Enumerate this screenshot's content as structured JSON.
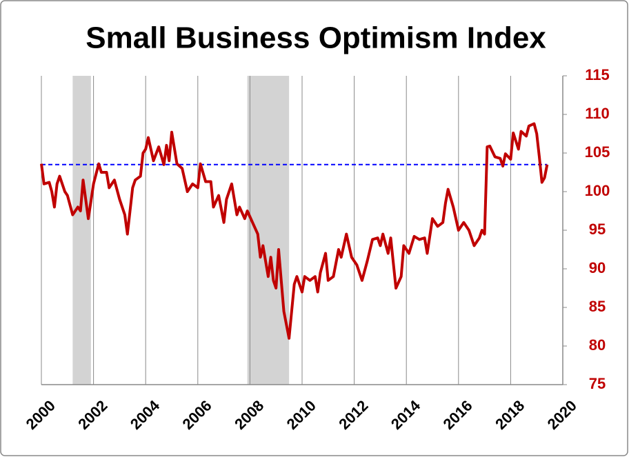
{
  "chart_data": {
    "type": "line",
    "title": "Small Business Optimism Index",
    "xlim": [
      2000,
      2020
    ],
    "xticks": [
      2000,
      2002,
      2004,
      2006,
      2008,
      2010,
      2012,
      2014,
      2016,
      2018,
      2020
    ],
    "ylim": [
      75,
      115
    ],
    "yticks": [
      75,
      80,
      85,
      90,
      95,
      100,
      105,
      110,
      115
    ],
    "grid": true,
    "y_axis_side": "right",
    "tick_label_color": "#c00000",
    "shaded_periods": [
      [
        2001.2,
        2001.9
      ],
      [
        2007.9,
        2009.5
      ]
    ],
    "shade_color": "#d3d3d3",
    "reference_line": {
      "value": 103.5,
      "color": "#0000ff"
    },
    "x": [
      2000.0,
      2000.1,
      2000.3,
      2000.4,
      2000.5,
      2000.6,
      2000.7,
      2000.9,
      2001.0,
      2001.2,
      2001.4,
      2001.5,
      2001.6,
      2001.8,
      2002.0,
      2002.2,
      2002.3,
      2002.5,
      2002.6,
      2002.8,
      2003.0,
      2003.2,
      2003.3,
      2003.5,
      2003.6,
      2003.8,
      2003.9,
      2004.0,
      2004.1,
      2004.3,
      2004.5,
      2004.7,
      2004.8,
      2004.9,
      2005.0,
      2005.2,
      2005.4,
      2005.6,
      2005.8,
      2006.0,
      2006.1,
      2006.3,
      2006.5,
      2006.6,
      2006.8,
      2007.0,
      2007.1,
      2007.3,
      2007.5,
      2007.6,
      2007.8,
      2007.9,
      2008.1,
      2008.3,
      2008.4,
      2008.5,
      2008.7,
      2008.8,
      2008.9,
      2009.0,
      2009.1,
      2009.3,
      2009.5,
      2009.7,
      2009.8,
      2010.0,
      2010.1,
      2010.3,
      2010.5,
      2010.6,
      2010.7,
      2010.9,
      2011.0,
      2011.2,
      2011.4,
      2011.5,
      2011.7,
      2011.9,
      2012.1,
      2012.3,
      2012.5,
      2012.7,
      2012.9,
      2013.0,
      2013.1,
      2013.3,
      2013.4,
      2013.6,
      2013.8,
      2013.9,
      2014.1,
      2014.3,
      2014.5,
      2014.7,
      2014.8,
      2015.0,
      2015.2,
      2015.4,
      2015.5,
      2015.6,
      2015.8,
      2016.0,
      2016.2,
      2016.4,
      2016.6,
      2016.8,
      2016.9,
      2017.0,
      2017.1,
      2017.2,
      2017.4,
      2017.6,
      2017.7,
      2017.8,
      2018.0,
      2018.1,
      2018.3,
      2018.4,
      2018.6,
      2018.7,
      2018.9,
      2019.0,
      2019.1,
      2019.2,
      2019.3,
      2019.4
    ],
    "series": [
      {
        "name": "Small Business Optimism Index",
        "color": "#c00000",
        "values": [
          103.6,
          101,
          101.2,
          100,
          98,
          101,
          102,
          100,
          99.5,
          97,
          98,
          97.5,
          101.5,
          96.5,
          101,
          103.6,
          102.5,
          102.5,
          100.5,
          101.5,
          99,
          97,
          94.5,
          100.5,
          101.5,
          102,
          105,
          105.5,
          107,
          104,
          105.8,
          103.5,
          106,
          104,
          107.7,
          103.6,
          103,
          100,
          101,
          100.5,
          103.6,
          101.3,
          101.3,
          98,
          99.5,
          96,
          99,
          101,
          97,
          98,
          96.5,
          97.5,
          96,
          94.5,
          91.5,
          93,
          89,
          91.5,
          88.5,
          87.5,
          92.5,
          84.5,
          81,
          88,
          89,
          87,
          89,
          88.5,
          89,
          87,
          89.5,
          92,
          88.5,
          89,
          92.5,
          91.5,
          94.5,
          91.5,
          90.5,
          88.5,
          91,
          93.8,
          94,
          93,
          94.5,
          92,
          94,
          87.5,
          89,
          93,
          92,
          94.2,
          93.8,
          94,
          92,
          96.5,
          95.5,
          96,
          98.5,
          100.3,
          98,
          95,
          96,
          95,
          93,
          94,
          95,
          94.5,
          105.8,
          105.9,
          104.5,
          104.3,
          103.3,
          104.9,
          104.2,
          107.6,
          105.5,
          107.8,
          107.2,
          108.5,
          108.8,
          107.5,
          104.5,
          101.2,
          101.8,
          103.5
        ]
      }
    ]
  }
}
